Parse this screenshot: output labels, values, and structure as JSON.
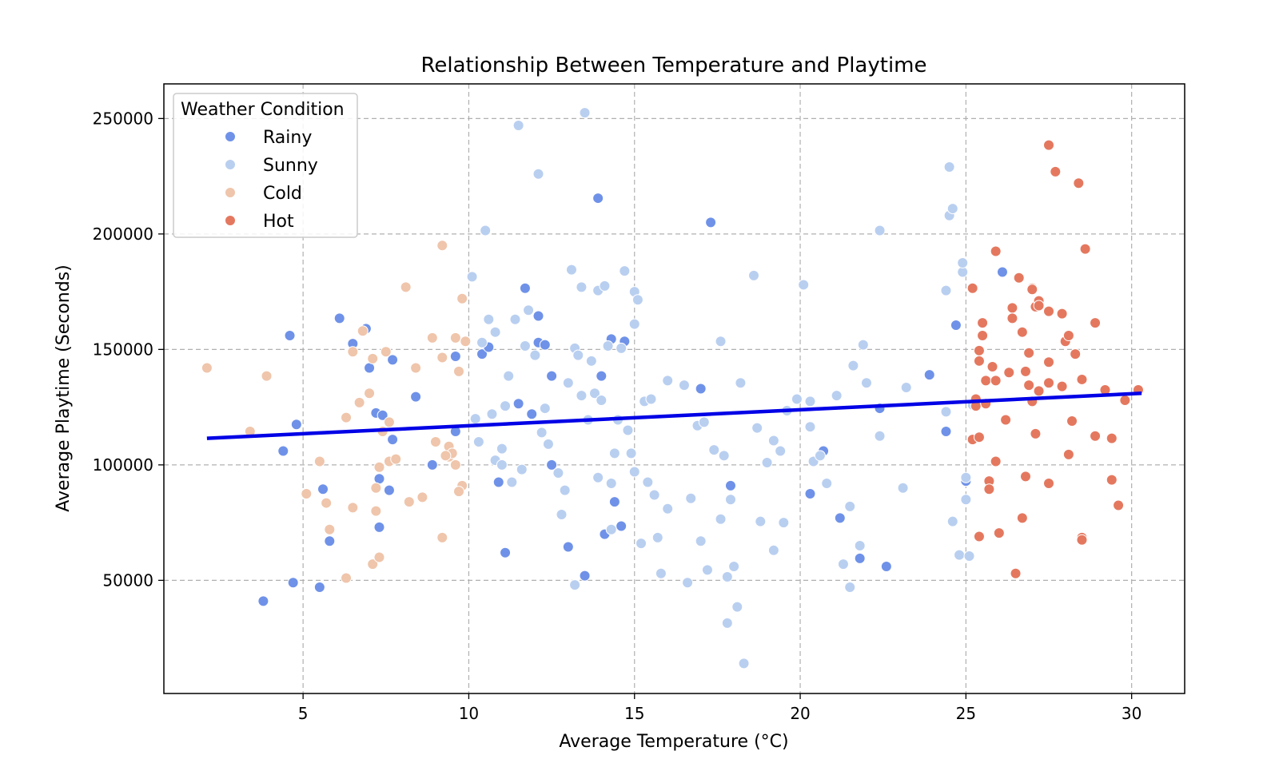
{
  "chart_data": {
    "type": "scatter",
    "title": "Relationship Between Temperature and Playtime",
    "xlabel": "Average Temperature (°C)",
    "ylabel": "Average Playtime (Seconds)",
    "xlim": [
      0.8,
      31.6
    ],
    "ylim": [
      1000,
      265000
    ],
    "xticks": [
      5,
      10,
      15,
      20,
      25,
      30
    ],
    "yticks": [
      50000,
      100000,
      150000,
      200000,
      250000
    ],
    "grid": true,
    "legend": {
      "title": "Weather Condition",
      "placement": "top-left",
      "entries": [
        "Rainy",
        "Sunny",
        "Cold",
        "Hot"
      ]
    },
    "colors": {
      "Rainy": "#6f92e8",
      "Sunny": "#b9cff0",
      "Cold": "#efc5ab",
      "Hot": "#e4785f",
      "trend": "#0000e6"
    },
    "trend_line": {
      "x": [
        2.1,
        30.3
      ],
      "y": [
        111500,
        131000
      ]
    },
    "series": [
      {
        "name": "Rainy",
        "points": [
          [
            3.8,
            41000
          ],
          [
            4.4,
            106000
          ],
          [
            4.6,
            156000
          ],
          [
            4.7,
            49000
          ],
          [
            4.8,
            117500
          ],
          [
            5.5,
            47000
          ],
          [
            5.6,
            89500
          ],
          [
            5.8,
            67000
          ],
          [
            6.1,
            163500
          ],
          [
            6.5,
            152500
          ],
          [
            6.9,
            159000
          ],
          [
            7.0,
            142000
          ],
          [
            7.2,
            122500
          ],
          [
            7.3,
            94000
          ],
          [
            7.3,
            73000
          ],
          [
            7.4,
            121500
          ],
          [
            7.6,
            89000
          ],
          [
            7.7,
            111000
          ],
          [
            7.7,
            145500
          ],
          [
            8.4,
            129500
          ],
          [
            8.9,
            100000
          ],
          [
            9.6,
            114500
          ],
          [
            9.6,
            147000
          ],
          [
            10.4,
            148000
          ],
          [
            10.6,
            151000
          ],
          [
            10.9,
            92500
          ],
          [
            11.1,
            62000
          ],
          [
            11.5,
            126500
          ],
          [
            11.7,
            176500
          ],
          [
            11.9,
            122000
          ],
          [
            12.1,
            164500
          ],
          [
            12.1,
            153000
          ],
          [
            12.3,
            152000
          ],
          [
            12.5,
            138500
          ],
          [
            12.5,
            100000
          ],
          [
            13.0,
            64500
          ],
          [
            13.5,
            52000
          ],
          [
            13.9,
            215500
          ],
          [
            14.0,
            138500
          ],
          [
            14.1,
            70000
          ],
          [
            14.3,
            154500
          ],
          [
            14.4,
            84000
          ],
          [
            14.6,
            73500
          ],
          [
            14.7,
            153500
          ],
          [
            17.0,
            133000
          ],
          [
            17.3,
            205000
          ],
          [
            17.9,
            91000
          ],
          [
            20.3,
            87500
          ],
          [
            20.7,
            106000
          ],
          [
            21.2,
            77000
          ],
          [
            21.8,
            59500
          ],
          [
            22.4,
            124500
          ],
          [
            22.6,
            56000
          ],
          [
            23.9,
            139000
          ],
          [
            24.4,
            114500
          ],
          [
            24.7,
            160500
          ],
          [
            25.0,
            93000
          ],
          [
            26.1,
            183500
          ]
        ]
      },
      {
        "name": "Sunny",
        "points": [
          [
            10.1,
            181500
          ],
          [
            10.2,
            120000
          ],
          [
            10.3,
            110000
          ],
          [
            10.4,
            153000
          ],
          [
            10.5,
            201500
          ],
          [
            10.6,
            163000
          ],
          [
            10.7,
            122000
          ],
          [
            10.8,
            157500
          ],
          [
            10.8,
            102000
          ],
          [
            11.0,
            100000
          ],
          [
            11.0,
            107000
          ],
          [
            11.1,
            125500
          ],
          [
            11.2,
            138500
          ],
          [
            11.4,
            163000
          ],
          [
            11.5,
            247000
          ],
          [
            11.6,
            98000
          ],
          [
            11.7,
            151500
          ],
          [
            11.8,
            167000
          ],
          [
            12.0,
            147500
          ],
          [
            12.1,
            226000
          ],
          [
            12.2,
            114000
          ],
          [
            12.3,
            124500
          ],
          [
            12.4,
            109000
          ],
          [
            12.7,
            96500
          ],
          [
            12.8,
            78500
          ],
          [
            13.0,
            135500
          ],
          [
            13.1,
            184500
          ],
          [
            13.2,
            150500
          ],
          [
            13.3,
            147500
          ],
          [
            13.4,
            130000
          ],
          [
            13.4,
            177000
          ],
          [
            13.5,
            252500
          ],
          [
            13.6,
            119500
          ],
          [
            13.7,
            145000
          ],
          [
            13.8,
            131000
          ],
          [
            13.9,
            94500
          ],
          [
            13.9,
            175500
          ],
          [
            14.0,
            128000
          ],
          [
            14.1,
            177500
          ],
          [
            14.2,
            151500
          ],
          [
            14.3,
            92000
          ],
          [
            14.4,
            105000
          ],
          [
            14.5,
            119500
          ],
          [
            14.6,
            150500
          ],
          [
            14.7,
            184000
          ],
          [
            14.8,
            115000
          ],
          [
            14.9,
            105000
          ],
          [
            15.0,
            161000
          ],
          [
            15.0,
            175000
          ],
          [
            15.1,
            171500
          ],
          [
            15.2,
            66000
          ],
          [
            15.3,
            127500
          ],
          [
            15.4,
            92500
          ],
          [
            15.5,
            128500
          ],
          [
            15.6,
            87000
          ],
          [
            15.7,
            68500
          ],
          [
            15.8,
            53000
          ],
          [
            16.0,
            136500
          ],
          [
            16.5,
            134500
          ],
          [
            16.6,
            49000
          ],
          [
            16.7,
            85500
          ],
          [
            16.9,
            117000
          ],
          [
            17.0,
            67000
          ],
          [
            17.1,
            118500
          ],
          [
            17.2,
            54500
          ],
          [
            17.4,
            106500
          ],
          [
            17.6,
            76500
          ],
          [
            17.6,
            153500
          ],
          [
            17.7,
            104000
          ],
          [
            17.8,
            51500
          ],
          [
            17.8,
            31500
          ],
          [
            17.9,
            85000
          ],
          [
            18.0,
            56000
          ],
          [
            18.1,
            38500
          ],
          [
            18.2,
            135500
          ],
          [
            18.3,
            14000
          ],
          [
            18.6,
            182000
          ],
          [
            18.7,
            116000
          ],
          [
            18.8,
            75500
          ],
          [
            19.0,
            101000
          ],
          [
            19.2,
            110500
          ],
          [
            19.2,
            63000
          ],
          [
            19.4,
            106000
          ],
          [
            19.5,
            75000
          ],
          [
            19.9,
            128500
          ],
          [
            20.1,
            178000
          ],
          [
            20.3,
            116500
          ],
          [
            20.3,
            127500
          ],
          [
            20.4,
            101500
          ],
          [
            20.6,
            104000
          ],
          [
            20.8,
            92000
          ],
          [
            21.1,
            130000
          ],
          [
            21.5,
            82000
          ],
          [
            21.5,
            47000
          ],
          [
            21.6,
            143000
          ],
          [
            21.8,
            65000
          ],
          [
            21.9,
            152000
          ],
          [
            22.0,
            135500
          ],
          [
            22.4,
            112500
          ],
          [
            22.4,
            201500
          ],
          [
            23.1,
            90000
          ],
          [
            23.2,
            133500
          ],
          [
            24.4,
            123000
          ],
          [
            24.4,
            175500
          ],
          [
            24.5,
            208000
          ],
          [
            24.5,
            229000
          ],
          [
            24.6,
            211000
          ],
          [
            24.6,
            75500
          ],
          [
            24.8,
            61000
          ],
          [
            24.9,
            183500
          ],
          [
            25.0,
            94500
          ],
          [
            25.0,
            85000
          ],
          [
            25.1,
            60500
          ],
          [
            25.2,
            126000
          ],
          [
            24.9,
            187500
          ],
          [
            11.3,
            92500
          ],
          [
            14.3,
            72000
          ],
          [
            15.0,
            97000
          ],
          [
            16.0,
            81000
          ],
          [
            13.2,
            48000
          ],
          [
            12.9,
            89000
          ],
          [
            21.3,
            57000
          ],
          [
            19.6,
            123500
          ]
        ]
      },
      {
        "name": "Cold",
        "points": [
          [
            2.1,
            142000
          ],
          [
            3.4,
            114500
          ],
          [
            3.9,
            138500
          ],
          [
            5.1,
            87500
          ],
          [
            5.5,
            101500
          ],
          [
            5.7,
            83500
          ],
          [
            5.8,
            72000
          ],
          [
            6.3,
            120500
          ],
          [
            6.3,
            51000
          ],
          [
            6.5,
            149000
          ],
          [
            6.5,
            81500
          ],
          [
            6.7,
            127000
          ],
          [
            6.8,
            158000
          ],
          [
            7.0,
            131000
          ],
          [
            7.1,
            146000
          ],
          [
            7.1,
            57000
          ],
          [
            7.2,
            80000
          ],
          [
            7.2,
            90000
          ],
          [
            7.3,
            60000
          ],
          [
            7.3,
            99000
          ],
          [
            7.4,
            114500
          ],
          [
            7.5,
            149000
          ],
          [
            7.6,
            101500
          ],
          [
            7.6,
            118500
          ],
          [
            7.8,
            102500
          ],
          [
            8.1,
            177000
          ],
          [
            8.2,
            84000
          ],
          [
            8.4,
            142000
          ],
          [
            8.6,
            86000
          ],
          [
            8.9,
            155000
          ],
          [
            9.0,
            110000
          ],
          [
            9.2,
            146500
          ],
          [
            9.2,
            68500
          ],
          [
            9.2,
            195000
          ],
          [
            9.4,
            108000
          ],
          [
            9.4,
            103500
          ],
          [
            9.5,
            105000
          ],
          [
            9.6,
            100000
          ],
          [
            9.6,
            155000
          ],
          [
            9.7,
            140500
          ],
          [
            9.8,
            91000
          ],
          [
            9.8,
            172000
          ],
          [
            9.9,
            153500
          ],
          [
            9.7,
            88500
          ],
          [
            9.3,
            104000
          ]
        ]
      },
      {
        "name": "Hot",
        "points": [
          [
            25.2,
            111000
          ],
          [
            25.2,
            176500
          ],
          [
            25.3,
            128500
          ],
          [
            25.3,
            125500
          ],
          [
            25.4,
            112000
          ],
          [
            25.4,
            149500
          ],
          [
            25.4,
            145000
          ],
          [
            25.4,
            69000
          ],
          [
            25.5,
            161500
          ],
          [
            25.5,
            156000
          ],
          [
            25.6,
            136500
          ],
          [
            25.6,
            126500
          ],
          [
            25.7,
            93000
          ],
          [
            25.7,
            89500
          ],
          [
            25.8,
            142500
          ],
          [
            25.9,
            101500
          ],
          [
            25.9,
            136500
          ],
          [
            25.9,
            192500
          ],
          [
            26.0,
            70500
          ],
          [
            26.2,
            119500
          ],
          [
            26.3,
            140000
          ],
          [
            26.4,
            168000
          ],
          [
            26.4,
            163500
          ],
          [
            26.5,
            53000
          ],
          [
            26.6,
            181000
          ],
          [
            26.7,
            157500
          ],
          [
            26.7,
            77000
          ],
          [
            26.8,
            95000
          ],
          [
            26.8,
            140500
          ],
          [
            26.9,
            134500
          ],
          [
            26.9,
            148500
          ],
          [
            27.0,
            127500
          ],
          [
            27.0,
            176500
          ],
          [
            27.1,
            113500
          ],
          [
            27.1,
            168500
          ],
          [
            27.2,
            171000
          ],
          [
            27.2,
            132000
          ],
          [
            27.5,
            238500
          ],
          [
            27.5,
            166500
          ],
          [
            27.5,
            144500
          ],
          [
            27.5,
            135500
          ],
          [
            27.5,
            92000
          ],
          [
            27.7,
            227000
          ],
          [
            27.9,
            134000
          ],
          [
            27.9,
            165500
          ],
          [
            28.0,
            153500
          ],
          [
            28.1,
            104500
          ],
          [
            28.1,
            156000
          ],
          [
            28.2,
            119000
          ],
          [
            28.3,
            148000
          ],
          [
            28.4,
            222000
          ],
          [
            28.5,
            68500
          ],
          [
            28.5,
            67500
          ],
          [
            28.5,
            137000
          ],
          [
            28.6,
            193500
          ],
          [
            28.9,
            161500
          ],
          [
            28.9,
            112500
          ],
          [
            29.2,
            132500
          ],
          [
            29.4,
            93500
          ],
          [
            29.4,
            111500
          ],
          [
            29.6,
            82500
          ],
          [
            29.8,
            128000
          ],
          [
            30.2,
            132500
          ],
          [
            27.0,
            176000
          ],
          [
            27.2,
            169000
          ]
        ]
      }
    ]
  }
}
